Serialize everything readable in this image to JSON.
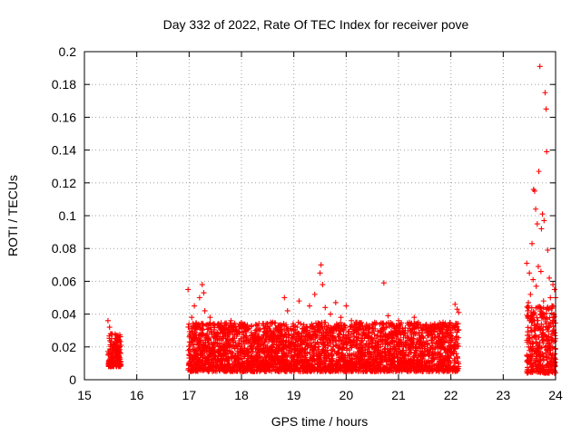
{
  "chart_data": {
    "type": "scatter",
    "title": "Day 332 of 2022, Rate Of TEC Index for receiver pove",
    "xlabel": "GPS time / hours",
    "ylabel": "ROTI / TECUs",
    "xlim": [
      15,
      24
    ],
    "ylim": [
      0,
      0.2
    ],
    "xticks": [
      "15",
      "16",
      "17",
      "18",
      "19",
      "20",
      "21",
      "22",
      "23",
      "24"
    ],
    "yticks": [
      "0",
      "0.02",
      "0.04",
      "0.06",
      "0.08",
      "0.1",
      "0.12",
      "0.14",
      "0.16",
      "0.18",
      "0.2"
    ],
    "grid": true,
    "marker": "+",
    "color": "#ff0000",
    "series": [
      {
        "points": [
          [
            15.45,
            0.036
          ],
          [
            15.48,
            0.032
          ],
          [
            15.5,
            0.028
          ],
          [
            15.52,
            0.025
          ],
          [
            15.55,
            0.022
          ],
          [
            15.58,
            0.02
          ],
          [
            15.6,
            0.018
          ],
          [
            15.62,
            0.015
          ],
          [
            15.65,
            0.013
          ],
          [
            15.68,
            0.011
          ],
          [
            15.47,
            0.012
          ],
          [
            15.52,
            0.016
          ],
          [
            15.57,
            0.019
          ],
          [
            15.63,
            0.026
          ],
          [
            15.66,
            0.023
          ],
          [
            15.7,
            0.021
          ],
          [
            15.5,
            0.009
          ],
          [
            15.55,
            0.01
          ],
          [
            15.6,
            0.012
          ],
          [
            15.64,
            0.017
          ],
          [
            16.98,
            0.055
          ],
          [
            17.05,
            0.038
          ],
          [
            17.1,
            0.045
          ],
          [
            17.15,
            0.032
          ],
          [
            17.2,
            0.05
          ],
          [
            17.25,
            0.058
          ],
          [
            17.28,
            0.053
          ],
          [
            17.3,
            0.042
          ],
          [
            17.4,
            0.038
          ],
          [
            17.55,
            0.034
          ],
          [
            17.7,
            0.028
          ],
          [
            17.8,
            0.036
          ],
          [
            17.9,
            0.031
          ],
          [
            18.0,
            0.025
          ],
          [
            18.1,
            0.03
          ],
          [
            18.2,
            0.027
          ],
          [
            18.3,
            0.033
          ],
          [
            18.45,
            0.029
          ],
          [
            18.6,
            0.035
          ],
          [
            18.7,
            0.026
          ],
          [
            18.82,
            0.05
          ],
          [
            18.88,
            0.042
          ],
          [
            19.0,
            0.033
          ],
          [
            19.1,
            0.048
          ],
          [
            19.2,
            0.03
          ],
          [
            19.3,
            0.045
          ],
          [
            19.4,
            0.052
          ],
          [
            19.5,
            0.065
          ],
          [
            19.52,
            0.07
          ],
          [
            19.55,
            0.058
          ],
          [
            19.6,
            0.044
          ],
          [
            19.7,
            0.04
          ],
          [
            19.8,
            0.047
          ],
          [
            19.9,
            0.038
          ],
          [
            20.0,
            0.045
          ],
          [
            20.1,
            0.036
          ],
          [
            20.2,
            0.031
          ],
          [
            20.35,
            0.028
          ],
          [
            20.5,
            0.034
          ],
          [
            20.65,
            0.03
          ],
          [
            20.72,
            0.059
          ],
          [
            20.8,
            0.039
          ],
          [
            20.9,
            0.033
          ],
          [
            21.0,
            0.036
          ],
          [
            21.1,
            0.03
          ],
          [
            21.2,
            0.025
          ],
          [
            21.3,
            0.038
          ],
          [
            21.4,
            0.027
          ],
          [
            21.55,
            0.032
          ],
          [
            21.7,
            0.026
          ],
          [
            21.85,
            0.035
          ],
          [
            21.95,
            0.03
          ],
          [
            22.08,
            0.046
          ],
          [
            22.12,
            0.043
          ],
          [
            22.15,
            0.041
          ],
          [
            23.45,
            0.071
          ],
          [
            23.5,
            0.065
          ],
          [
            23.55,
            0.083
          ],
          [
            23.58,
            0.116
          ],
          [
            23.6,
            0.115
          ],
          [
            23.62,
            0.104
          ],
          [
            23.65,
            0.095
          ],
          [
            23.68,
            0.127
          ],
          [
            23.7,
            0.191
          ],
          [
            23.73,
            0.092
          ],
          [
            23.75,
            0.101
          ],
          [
            23.78,
            0.097
          ],
          [
            23.8,
            0.175
          ],
          [
            23.82,
            0.165
          ],
          [
            23.83,
            0.139
          ],
          [
            23.85,
            0.079
          ],
          [
            23.88,
            0.062
          ],
          [
            23.9,
            0.05
          ],
          [
            23.93,
            0.045
          ],
          [
            23.95,
            0.058
          ],
          [
            23.98,
            0.055
          ],
          [
            24.0,
            0.05
          ],
          [
            23.48,
            0.047
          ],
          [
            23.52,
            0.052
          ],
          [
            23.57,
            0.061
          ],
          [
            23.63,
            0.057
          ],
          [
            23.67,
            0.069
          ],
          [
            23.72,
            0.066
          ],
          [
            23.77,
            0.048
          ],
          [
            23.87,
            0.043
          ]
        ]
      }
    ],
    "dense_regions": [
      {
        "x": [
          15.45,
          15.7
        ],
        "y": [
          0.008,
          0.028
        ]
      },
      {
        "x": [
          16.98,
          22.15
        ],
        "y": [
          0.005,
          0.035
        ]
      },
      {
        "x": [
          23.45,
          24.0
        ],
        "y": [
          0.004,
          0.045
        ]
      }
    ]
  }
}
